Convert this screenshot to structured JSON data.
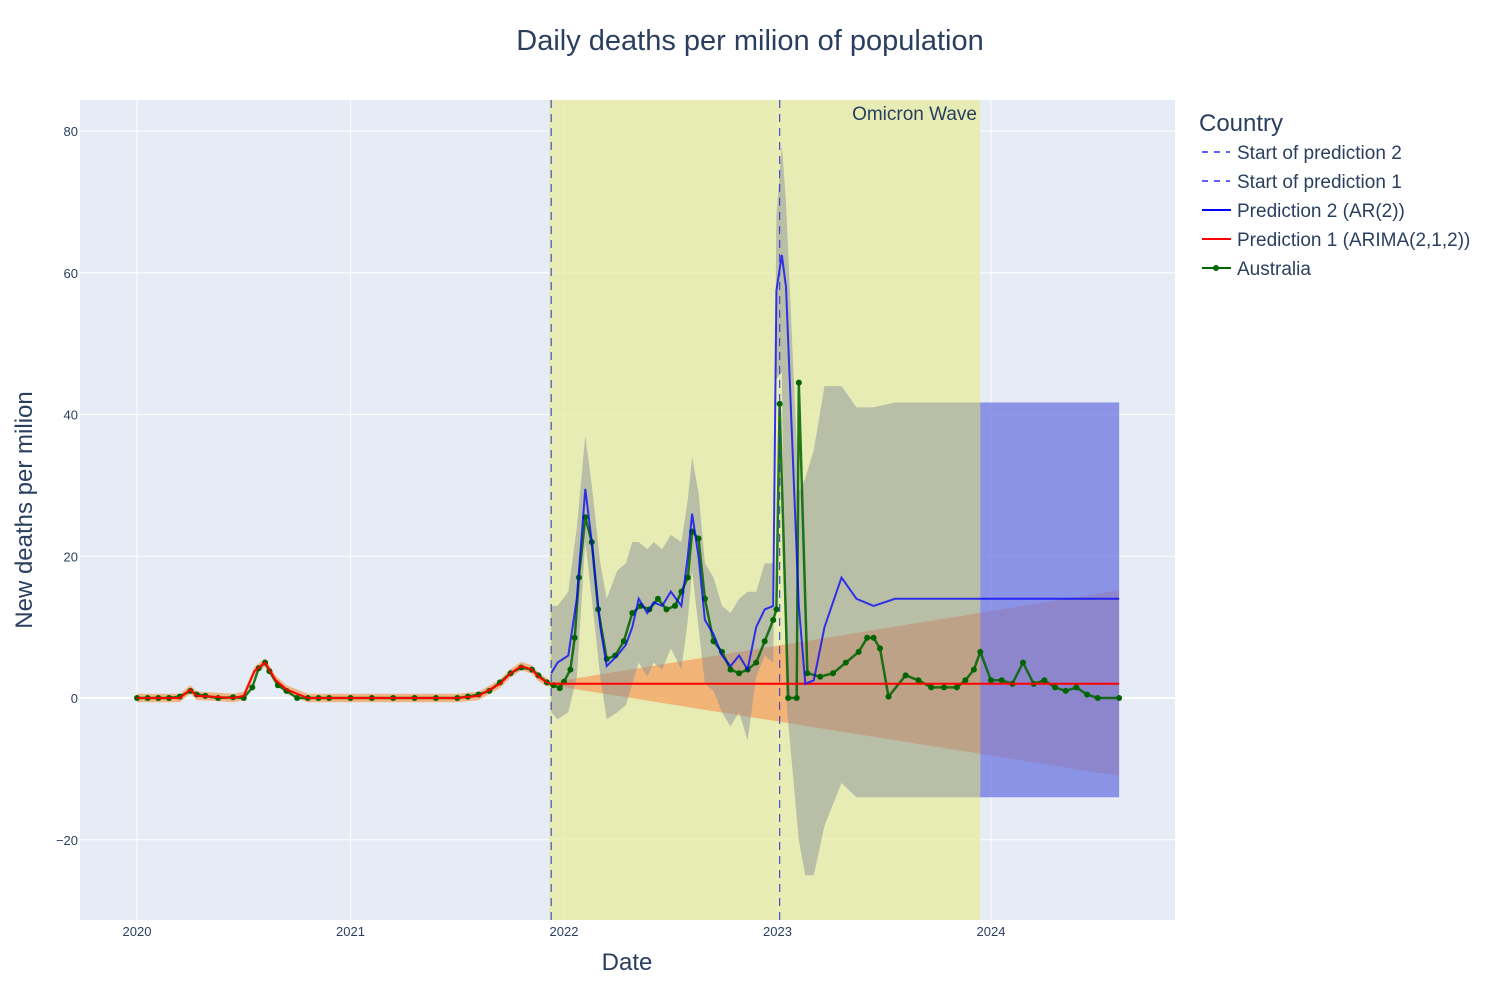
{
  "chart_data": {
    "type": "line",
    "title": "Daily deaths per milion of population",
    "xlabel": "Date",
    "ylabel": "New deaths per milion",
    "xlim": [
      2019.74,
      2024.87
    ],
    "ylim": [
      -31.5,
      84.5
    ],
    "grid": true,
    "x_ticks": [
      2020,
      2021,
      2022,
      2023,
      2024
    ],
    "x_tick_labels": [
      "2020",
      "2021",
      "2022",
      "2023",
      "2024"
    ],
    "y_ticks": [
      -20,
      0,
      20,
      40,
      60,
      80
    ],
    "y_tick_labels": [
      "−20",
      "0",
      "20",
      "40",
      "60",
      "80"
    ],
    "legend": {
      "title": "Country",
      "position": "right",
      "items": [
        {
          "name": "Start of prediction 2",
          "style": "dash",
          "color": "#0000ff"
        },
        {
          "name": "Start of prediction 1",
          "style": "dash",
          "color": "#0000ff"
        },
        {
          "name": "Prediction 2 (AR(2))",
          "style": "line",
          "color": "#0000ff"
        },
        {
          "name": "Prediction 1 (ARIMA(2,1,2))",
          "style": "line",
          "color": "#ff0000"
        },
        {
          "name": "Australia",
          "style": "line+marker",
          "color": "#006400"
        }
      ]
    },
    "annotations": [
      {
        "text": "Omicron Wave",
        "type": "shaded-region",
        "x_range": [
          2021.93,
          2023.95
        ],
        "color": "#e6ec9d"
      }
    ],
    "vlines": [
      {
        "name": "Start of prediction 2",
        "x": 2021.94
      },
      {
        "name": "Start of prediction 1",
        "x": 2023.01
      }
    ],
    "series": [
      {
        "name": "Australia",
        "color": "#006400",
        "x": [
          2020.0,
          2020.05,
          2020.1,
          2020.15,
          2020.2,
          2020.25,
          2020.28,
          2020.32,
          2020.38,
          2020.45,
          2020.5,
          2020.54,
          2020.57,
          2020.6,
          2020.62,
          2020.66,
          2020.7,
          2020.75,
          2020.8,
          2020.85,
          2020.9,
          2021.0,
          2021.1,
          2021.2,
          2021.3,
          2021.4,
          2021.5,
          2021.55,
          2021.6,
          2021.65,
          2021.7,
          2021.75,
          2021.8,
          2021.85,
          2021.88,
          2021.92,
          2021.95,
          2021.98,
          2022.0,
          2022.03,
          2022.05,
          2022.07,
          2022.1,
          2022.13,
          2022.16,
          2022.2,
          2022.24,
          2022.28,
          2022.32,
          2022.36,
          2022.4,
          2022.44,
          2022.48,
          2022.52,
          2022.55,
          2022.58,
          2022.6,
          2022.63,
          2022.66,
          2022.7,
          2022.74,
          2022.78,
          2022.82,
          2022.86,
          2022.9,
          2022.94,
          2022.98,
          2022.995,
          2023.01,
          2023.05,
          2023.09,
          2023.1,
          2023.14,
          2023.2,
          2023.26,
          2023.32,
          2023.38,
          2023.42,
          2023.45,
          2023.48,
          2023.52,
          2023.6,
          2023.66,
          2023.72,
          2023.78,
          2023.84,
          2023.88,
          2023.92,
          2023.95,
          2024.0,
          2024.05,
          2024.1,
          2024.15,
          2024.2,
          2024.25,
          2024.3,
          2024.35,
          2024.4,
          2024.45,
          2024.5,
          2024.6
        ],
        "y": [
          0,
          0,
          0,
          0,
          0.2,
          1.0,
          0.5,
          0.3,
          0,
          0.1,
          0,
          1.5,
          4.2,
          5.0,
          3.8,
          1.8,
          1.0,
          0,
          0,
          0,
          0,
          0,
          0,
          0,
          0,
          0,
          0,
          0.2,
          0.5,
          1.0,
          2.2,
          3.5,
          4.3,
          4.0,
          3.2,
          2.2,
          1.8,
          1.4,
          2.3,
          4.0,
          8.5,
          17,
          25.5,
          22,
          12.5,
          5.5,
          6,
          8,
          12,
          13,
          12.5,
          14,
          12.5,
          13,
          15,
          17,
          23.5,
          22.5,
          14,
          8,
          6.5,
          4,
          3.5,
          4,
          5,
          8,
          11,
          12.5,
          41.5,
          0,
          0,
          44.5,
          3.5,
          3,
          3.5,
          5,
          6.5,
          8.5,
          8.5,
          7,
          0.2,
          3.2,
          2.5,
          1.5,
          1.5,
          1.5,
          2.5,
          4,
          6.5,
          2.5,
          2.5,
          2,
          5,
          2,
          2.5,
          1.5,
          1,
          1.5,
          0.5,
          0,
          0
        ]
      },
      {
        "name": "Prediction 1 (ARIMA(2,1,2))",
        "color": "#ff0000",
        "x": [
          2020.0,
          2020.1,
          2020.2,
          2020.25,
          2020.28,
          2020.35,
          2020.45,
          2020.5,
          2020.55,
          2020.6,
          2020.65,
          2020.7,
          2020.8,
          2020.9,
          2021.0,
          2021.5,
          2021.6,
          2021.7,
          2021.75,
          2021.8,
          2021.85,
          2021.88,
          2021.92,
          2021.94,
          2024.6
        ],
        "y": [
          0,
          0,
          0,
          1.2,
          0.3,
          0.2,
          0,
          0.3,
          3.8,
          5.0,
          2.5,
          1.2,
          0,
          0,
          0,
          0,
          0.3,
          2.0,
          3.5,
          4.5,
          4.0,
          3.0,
          2.2,
          2.0,
          2.0
        ],
        "ci_upper": [
          0.6,
          0.6,
          0.6,
          1.8,
          0.9,
          0.8,
          0.6,
          0.9,
          4.4,
          5.6,
          3.1,
          1.8,
          0.6,
          0.6,
          0.6,
          0.6,
          0.9,
          2.6,
          4.1,
          5.1,
          4.6,
          3.6,
          2.8,
          2.2,
          15.2
        ],
        "ci_lower": [
          -0.6,
          -0.6,
          -0.6,
          0.6,
          -0.3,
          -0.4,
          -0.6,
          -0.3,
          3.2,
          4.4,
          1.9,
          0.6,
          -0.6,
          -0.6,
          -0.6,
          -0.6,
          -0.3,
          1.4,
          2.9,
          3.9,
          3.4,
          2.4,
          1.6,
          1.8,
          -11.0
        ]
      },
      {
        "name": "Prediction 2 (AR(2))",
        "color": "#0000ff",
        "x": [
          2021.94,
          2021.97,
          2022.02,
          2022.06,
          2022.1,
          2022.13,
          2022.17,
          2022.2,
          2022.25,
          2022.29,
          2022.32,
          2022.35,
          2022.39,
          2022.42,
          2022.46,
          2022.5,
          2022.55,
          2022.58,
          2022.6,
          2022.63,
          2022.66,
          2022.7,
          2022.74,
          2022.78,
          2022.82,
          2022.86,
          2022.9,
          2022.94,
          2022.98,
          2022.995,
          2023.02,
          2023.04,
          2023.1,
          2023.13,
          2023.17,
          2023.22,
          2023.3,
          2023.37,
          2023.45,
          2023.55,
          2023.7,
          2023.85,
          2024.0,
          2024.6
        ],
        "y": [
          3.5,
          5,
          6,
          14,
          29.5,
          22,
          10,
          4.5,
          6,
          7.5,
          10,
          14,
          12,
          13.5,
          13,
          15,
          13,
          20,
          26,
          20,
          11,
          9,
          6,
          4.5,
          6,
          4,
          10,
          12.5,
          13,
          57.5,
          62.5,
          58,
          13,
          2,
          2.5,
          10,
          17,
          14,
          13,
          14,
          14,
          14,
          14,
          14
        ],
        "ci_upper": [
          13,
          13,
          15,
          24,
          37,
          30,
          19,
          14,
          18,
          19,
          22,
          22,
          21,
          22,
          21,
          23,
          22,
          28,
          34,
          29,
          19,
          17,
          13,
          12,
          14,
          15,
          15,
          19,
          19,
          68,
          78,
          70,
          29,
          31,
          35,
          44,
          44,
          41,
          41,
          41.7,
          41.7,
          41.7,
          41.7,
          41.7
        ],
        "ci_lower": [
          -2,
          -3,
          -2,
          3,
          22,
          14,
          3,
          -3,
          -2,
          -1,
          2,
          5,
          3,
          5,
          4,
          7,
          4,
          11,
          18,
          10,
          2,
          1,
          -2,
          -4,
          -2,
          -6,
          3,
          6,
          5,
          45,
          46,
          0,
          -20,
          -25,
          -25,
          -18,
          -12,
          -14,
          -14,
          -14,
          -14,
          -14,
          -14,
          -14
        ]
      }
    ]
  }
}
